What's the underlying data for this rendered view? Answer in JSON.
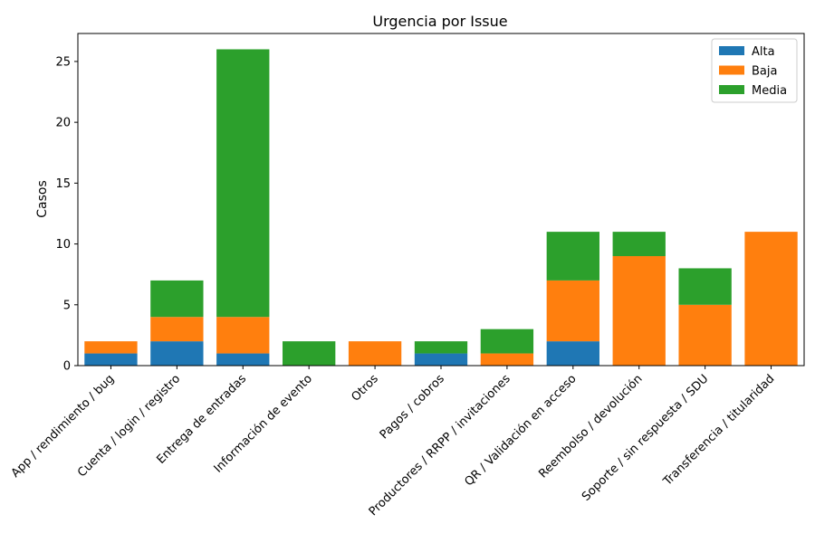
{
  "chart_data": {
    "type": "bar",
    "stacked": true,
    "title": "Urgencia por Issue",
    "xlabel": "",
    "ylabel": "Casos",
    "ylim": [
      0,
      27.3
    ],
    "yticks": [
      0,
      5,
      10,
      15,
      20,
      25
    ],
    "legend_position": "top-right",
    "grid": false,
    "categories": [
      "App / rendimiento / bug",
      "Cuenta / login / registro",
      "Entrega de entradas",
      "Información de evento",
      "Otros",
      "Pagos / cobros",
      "Productores / RRPP / invitaciones",
      "QR / Validación en acceso",
      "Reembolso / devolución",
      "Soporte / sin respuesta / SDU",
      "Transferencia / titularidad"
    ],
    "series": [
      {
        "name": "Alta",
        "color": "#1f77b4",
        "values": [
          1,
          2,
          1,
          0,
          0,
          1,
          0,
          2,
          0,
          0,
          0
        ]
      },
      {
        "name": "Baja",
        "color": "#ff7f0e",
        "values": [
          1,
          2,
          3,
          0,
          2,
          0,
          1,
          5,
          9,
          5,
          11
        ]
      },
      {
        "name": "Media",
        "color": "#2ca02c",
        "values": [
          0,
          3,
          22,
          2,
          0,
          1,
          2,
          4,
          2,
          3,
          0
        ]
      }
    ]
  }
}
